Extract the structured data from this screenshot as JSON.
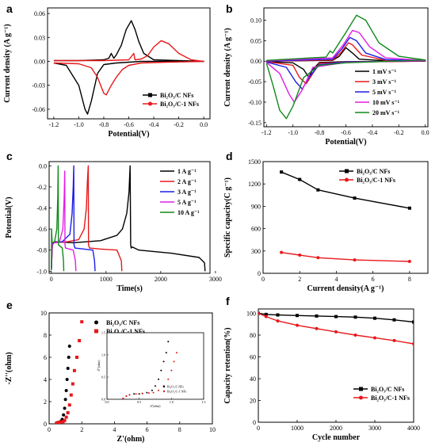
{
  "figure": {
    "palette": {
      "black": "#000000",
      "red": "#e8181b",
      "blue": "#1d1ee6",
      "magenta": "#e11ee6",
      "green": "#118a1c"
    }
  },
  "chart_data": [
    {
      "panel": "a",
      "type": "line",
      "xlabel": "Potential(V)",
      "ylabel": "Current density (A g⁻¹)",
      "xlim": [
        -1.25,
        0.05
      ],
      "ylim": [
        -0.072,
        0.067
      ],
      "xticks": [
        "-1.2",
        "-1.0",
        "-0.8",
        "-0.6",
        "-0.4",
        "-0.2",
        "0.0"
      ],
      "xtick_values": [
        -1.2,
        -1.0,
        -0.8,
        -0.6,
        -0.4,
        -0.2,
        0.0
      ],
      "yticks": [
        "-0.06",
        "-0.03",
        "0.00",
        "0.03",
        "0.06"
      ],
      "ytick_values": [
        -0.06,
        -0.03,
        0.0,
        0.03,
        0.06
      ],
      "legend": [
        "Bi₂O₃/C NFs",
        "Bi₂O₃/C-1 NFs"
      ],
      "legend_position": "bottom-right",
      "series": [
        {
          "name": "Bi₂O₃/C NFs",
          "color": "#000000",
          "marker": "square",
          "x": [
            -1.2,
            -1.1,
            -1.0,
            -0.95,
            -0.93,
            -0.9,
            -0.85,
            -0.8,
            -0.7,
            -0.6,
            -0.5,
            -0.3,
            0.0,
            -0.2,
            -0.4,
            -0.48,
            -0.52,
            -0.55,
            -0.58,
            -0.62,
            -0.66,
            -0.7,
            -0.72,
            -0.74,
            -0.76,
            -0.8,
            -1.0,
            -1.2
          ],
          "y": [
            -0.002,
            -0.005,
            -0.03,
            -0.06,
            -0.066,
            -0.05,
            -0.015,
            -0.004,
            -0.002,
            -0.001,
            0.0,
            0.0,
            0.0,
            0.001,
            0.002,
            0.01,
            0.025,
            0.04,
            0.051,
            0.04,
            0.02,
            0.008,
            0.004,
            0.01,
            0.004,
            0.002,
            0.001,
            0.001
          ]
        },
        {
          "name": "Bi₂O₃/C-1 NFs",
          "color": "#e8181b",
          "marker": "circle",
          "x": [
            -1.2,
            -1.0,
            -0.9,
            -0.85,
            -0.8,
            -0.78,
            -0.74,
            -0.7,
            -0.65,
            -0.6,
            -0.5,
            -0.3,
            0.0,
            -0.1,
            -0.2,
            -0.28,
            -0.34,
            -0.4,
            -0.45,
            -0.5,
            -0.55,
            -0.56,
            -0.6,
            -0.8,
            -1.0,
            -1.2
          ],
          "y": [
            -0.002,
            -0.003,
            -0.008,
            -0.02,
            -0.04,
            -0.042,
            -0.03,
            -0.02,
            -0.01,
            -0.005,
            -0.002,
            -0.001,
            0.0,
            0.002,
            0.01,
            0.022,
            0.026,
            0.018,
            0.007,
            0.003,
            0.002,
            0.01,
            0.002,
            0.001,
            0.001,
            0.001
          ]
        }
      ]
    },
    {
      "panel": "b",
      "type": "line",
      "xlabel": "Potential(V)",
      "ylabel": "Current density (A g⁻¹)",
      "xlim": [
        -1.22,
        0.02
      ],
      "ylim": [
        -0.16,
        0.13
      ],
      "xticks": [
        "-1.2",
        "-1.0",
        "-0.8",
        "-0.6",
        "-0.4",
        "-0.2",
        "0.0"
      ],
      "xtick_values": [
        -1.2,
        -1.0,
        -0.8,
        -0.6,
        -0.4,
        -0.2,
        0.0
      ],
      "yticks": [
        "-0.15",
        "-0.10",
        "-0.05",
        "0.00",
        "0.05",
        "0.10"
      ],
      "ytick_values": [
        -0.15,
        -0.1,
        -0.05,
        0.0,
        0.05,
        0.1
      ],
      "legend": [
        "1 mV s⁻¹",
        "3 mV s⁻¹",
        "5 mV s⁻¹",
        "10 mV s⁻¹",
        "20 mV s⁻¹"
      ],
      "legend_position": "bottom-right",
      "series": [
        {
          "name": "1 mV s⁻¹",
          "color": "#000000",
          "x": [
            -1.2,
            -1.0,
            -0.92,
            -0.88,
            -0.85,
            -0.8,
            -0.6,
            -0.0,
            -0.3,
            -0.5,
            -0.55,
            -0.6,
            -0.65,
            -0.7,
            -1.2
          ],
          "y": [
            -0.001,
            -0.004,
            -0.02,
            -0.04,
            -0.02,
            -0.003,
            -0.001,
            0.0,
            0.001,
            0.005,
            0.02,
            0.033,
            0.012,
            0.002,
            0.0
          ]
        },
        {
          "name": "3 mV s⁻¹",
          "color": "#e8181b",
          "x": [
            -1.2,
            -1.0,
            -0.95,
            -0.9,
            -0.85,
            -0.8,
            -0.6,
            0.0,
            -0.3,
            -0.48,
            -0.55,
            -0.58,
            -0.64,
            -0.7,
            -1.2
          ],
          "y": [
            -0.001,
            -0.01,
            -0.04,
            -0.055,
            -0.03,
            -0.005,
            -0.002,
            0.0,
            0.002,
            0.015,
            0.04,
            0.045,
            0.02,
            0.003,
            0.0
          ]
        },
        {
          "name": "5 mV s⁻¹",
          "color": "#1d1ee6",
          "x": [
            -1.2,
            -1.05,
            -0.98,
            -0.93,
            -0.88,
            -0.8,
            -0.6,
            0.0,
            -0.3,
            -0.45,
            -0.52,
            -0.57,
            -0.63,
            -0.7,
            -1.2
          ],
          "y": [
            -0.002,
            -0.015,
            -0.05,
            -0.068,
            -0.04,
            -0.008,
            -0.002,
            0.001,
            0.004,
            0.02,
            0.05,
            0.058,
            0.03,
            0.005,
            0.0
          ]
        },
        {
          "name": "10 mV s⁻¹",
          "color": "#e11ee6",
          "x": [
            -1.2,
            -1.1,
            -1.03,
            -0.99,
            -0.93,
            -0.85,
            -0.6,
            0.0,
            -0.3,
            -0.42,
            -0.5,
            -0.55,
            -0.62,
            -0.7,
            -1.2
          ],
          "y": [
            -0.003,
            -0.03,
            -0.08,
            -0.1,
            -0.07,
            -0.015,
            -0.003,
            0.002,
            0.008,
            0.035,
            0.07,
            0.075,
            0.04,
            0.008,
            0.001
          ]
        },
        {
          "name": "20 mV s⁻¹",
          "color": "#118a1c",
          "x": [
            -1.2,
            -1.15,
            -1.1,
            -1.05,
            -1.0,
            -0.92,
            -0.8,
            -0.6,
            0.0,
            -0.2,
            -0.35,
            -0.45,
            -0.52,
            -0.6,
            -0.7,
            -0.72,
            -0.75,
            -1.2
          ],
          "y": [
            -0.005,
            -0.06,
            -0.12,
            -0.14,
            -0.11,
            -0.04,
            -0.01,
            -0.004,
            0.003,
            0.012,
            0.045,
            0.1,
            0.112,
            0.07,
            0.02,
            0.025,
            0.01,
            0.002
          ]
        }
      ]
    },
    {
      "panel": "c",
      "type": "line",
      "xlabel": "Time(s)",
      "ylabel": "Potential(V)",
      "xlim": [
        -40,
        2900
      ],
      "ylim": [
        -1.02,
        0.04
      ],
      "xticks": [
        "0",
        "1000",
        "2000",
        "3000"
      ],
      "xtick_values": [
        0,
        1000,
        2000,
        3000
      ],
      "yticks": [
        "-1.0",
        "-0.8",
        "-0.6",
        "-0.4",
        "-0.2",
        "0.0"
      ],
      "ytick_values": [
        -1.0,
        -0.8,
        -0.6,
        -0.4,
        -0.2,
        0.0
      ],
      "legend": [
        "1 A g⁻¹",
        "2 A g⁻¹",
        "3 A g⁻¹",
        "5 A g⁻¹",
        "10 A g⁻¹"
      ],
      "legend_position": "right",
      "series": [
        {
          "name": "1 A g⁻¹",
          "color": "#000000",
          "x": [
            0,
            20,
            60,
            400,
            900,
            1200,
            1300,
            1380,
            1420,
            1440,
            1450,
            1460,
            1480,
            1600,
            2200,
            2700,
            2800,
            2810
          ],
          "y": [
            -0.99,
            -0.74,
            -0.72,
            -0.73,
            -0.71,
            -0.66,
            -0.6,
            -0.45,
            -0.25,
            0.0,
            -0.75,
            -0.78,
            -0.77,
            -0.8,
            -0.83,
            -0.87,
            -0.92,
            -1.0
          ]
        },
        {
          "name": "2 A g⁻¹",
          "color": "#e8181b",
          "x": [
            0,
            20,
            50,
            300,
            500,
            600,
            640,
            660,
            675,
            680,
            700,
            900,
            1200,
            1280,
            1290
          ],
          "y": [
            -0.99,
            -0.75,
            -0.73,
            -0.72,
            -0.7,
            -0.6,
            -0.4,
            -0.15,
            0.0,
            -0.75,
            -0.78,
            -0.79,
            -0.8,
            -0.9,
            -1.0
          ]
        },
        {
          "name": "3 A g⁻¹",
          "color": "#1d1ee6",
          "x": [
            0,
            15,
            40,
            200,
            340,
            380,
            400,
            410,
            415,
            430,
            600,
            760,
            790,
            800
          ],
          "y": [
            -0.99,
            -0.75,
            -0.73,
            -0.72,
            -0.65,
            -0.45,
            -0.2,
            0.0,
            -0.75,
            -0.78,
            -0.79,
            -0.8,
            -0.9,
            -1.0
          ]
        },
        {
          "name": "5 A g⁻¹",
          "color": "#e11ee6",
          "x": [
            0,
            10,
            30,
            150,
            210,
            235,
            245,
            250,
            260,
            400,
            440,
            450
          ],
          "y": [
            -0.99,
            -0.75,
            -0.73,
            -0.72,
            -0.6,
            -0.3,
            -0.05,
            -0.75,
            -0.78,
            -0.8,
            -0.9,
            -1.0
          ]
        },
        {
          "name": "10 A g⁻¹",
          "color": "#118a1c",
          "x": [
            0,
            5,
            15,
            60,
            100,
            118,
            125,
            130,
            200,
            222,
            228
          ],
          "y": [
            -0.99,
            -0.6,
            -0.73,
            -0.72,
            -0.6,
            -0.3,
            0.0,
            -0.75,
            -0.78,
            -0.9,
            -1.0
          ]
        }
      ]
    },
    {
      "panel": "d",
      "type": "line",
      "xlabel": "Current density(A g⁻¹)",
      "ylabel": "Specific capacity(C g⁻¹)",
      "xlim": [
        0,
        9
      ],
      "ylim": [
        0,
        1500
      ],
      "xticks": [
        "0",
        "2",
        "4",
        "6",
        "8"
      ],
      "xtick_values": [
        0,
        2,
        4,
        6,
        8
      ],
      "yticks": [
        "0",
        "300",
        "600",
        "900",
        "1200",
        "1500"
      ],
      "ytick_values": [
        0,
        300,
        600,
        900,
        1200,
        1500
      ],
      "legend": [
        "Bi₂O₃/C NFs",
        "Bi₂O₃/C-1 NFs"
      ],
      "legend_position": "top-right",
      "series": [
        {
          "name": "Bi₂O₃/C NFs",
          "color": "#000000",
          "marker": "square",
          "x": [
            1,
            2,
            3,
            5,
            8
          ],
          "y": [
            1360,
            1260,
            1120,
            1010,
            875
          ]
        },
        {
          "name": "Bi₂O₃/C-1 NFs",
          "color": "#e8181b",
          "marker": "circle",
          "x": [
            1,
            2,
            3,
            5,
            8
          ],
          "y": [
            280,
            245,
            210,
            180,
            160
          ]
        }
      ]
    },
    {
      "panel": "e",
      "type": "scatter",
      "xlabel": "Z'(ohm)",
      "ylabel": "-Z''(ohm)",
      "xlim": [
        0,
        10
      ],
      "ylim": [
        0,
        10
      ],
      "xticks": [
        "0",
        "2",
        "4",
        "6",
        "8",
        "10"
      ],
      "xtick_values": [
        0,
        2,
        4,
        6,
        8,
        10
      ],
      "yticks": [
        "0",
        "2",
        "4",
        "6",
        "8",
        "10"
      ],
      "ytick_values": [
        0,
        2,
        4,
        6,
        8,
        10
      ],
      "legend": [
        "Bi₂O₃/C NFs",
        "Bi₂O₃/C-1 NFs"
      ],
      "legend_position": "top",
      "series": [
        {
          "name": "Bi₂O₃/C NFs",
          "color": "#000000",
          "marker": "circle",
          "x": [
            0.45,
            0.5,
            0.55,
            0.6,
            0.65,
            0.72,
            0.8,
            0.88,
            0.95,
            1.0,
            1.05,
            1.1,
            1.15,
            1.2,
            1.25
          ],
          "y": [
            0.05,
            0.1,
            0.12,
            0.12,
            0.15,
            0.22,
            0.4,
            0.8,
            1.4,
            2.2,
            3.0,
            4.0,
            5.0,
            6.0,
            7.0
          ]
        },
        {
          "name": "Bi₂O₃/C-1 NFs",
          "color": "#e8181b",
          "marker": "square",
          "x": [
            0.45,
            0.5,
            0.58,
            0.65,
            0.75,
            0.85,
            0.95,
            1.05,
            1.15,
            1.25,
            1.35,
            1.45,
            1.55,
            1.7,
            1.85,
            2.0
          ],
          "y": [
            0.05,
            0.08,
            0.12,
            0.14,
            0.16,
            0.2,
            0.3,
            0.6,
            1.0,
            1.7,
            2.6,
            3.6,
            4.8,
            6.0,
            7.5,
            9.2
          ]
        }
      ],
      "inset": {
        "xlim": [
          0.0,
          1.5
        ],
        "ylim": [
          0.0,
          1.5
        ],
        "xticks": [
          "0.0",
          "0.5",
          "1.0",
          "1.5"
        ],
        "xtick_values": [
          0.0,
          0.5,
          1.0,
          1.5
        ],
        "yticks": [
          "0.0",
          "0.5",
          "1.0",
          "1.5"
        ],
        "ytick_values": [
          0.0,
          0.5,
          1.0,
          1.5
        ],
        "xlabel": "Z'(ohm)",
        "ylabel": "-Z''(ohm)",
        "legend": [
          "Bi₂O₃/C NFs",
          "Bi₂O₃/C-1 NFs"
        ],
        "series": [
          {
            "name": "Bi₂O₃/C NFs",
            "color": "#000000",
            "x": [
              0.25,
              0.3,
              0.35,
              0.42,
              0.5,
              0.55,
              0.62,
              0.7,
              0.75,
              0.8,
              0.84,
              0.88,
              0.92,
              0.95
            ],
            "y": [
              0.02,
              0.07,
              0.1,
              0.12,
              0.12,
              0.13,
              0.15,
              0.2,
              0.3,
              0.45,
              0.65,
              0.85,
              1.05,
              1.3
            ]
          },
          {
            "name": "Bi₂O₃/C-1 NFs",
            "color": "#e8181b",
            "x": [
              0.25,
              0.3,
              0.35,
              0.45,
              0.55,
              0.65,
              0.72,
              0.8,
              0.88,
              0.95,
              1.0,
              1.04,
              1.08
            ],
            "y": [
              0.02,
              0.07,
              0.1,
              0.12,
              0.13,
              0.14,
              0.15,
              0.2,
              0.3,
              0.45,
              0.65,
              0.85,
              1.05
            ]
          }
        ]
      }
    },
    {
      "panel": "f",
      "type": "line",
      "xlabel": "Cycle number",
      "ylabel": "Capacity retention(%)",
      "xlim": [
        0,
        4000
      ],
      "ylim": [
        0,
        104
      ],
      "xticks": [
        "0",
        "1000",
        "2000",
        "3000",
        "4000"
      ],
      "xtick_values": [
        0,
        1000,
        2000,
        3000,
        4000
      ],
      "yticks": [
        "0",
        "20",
        "40",
        "60",
        "80",
        "100"
      ],
      "ytick_values": [
        0,
        20,
        40,
        60,
        80,
        100
      ],
      "legend": [
        "Bi₂O₃/C NFs",
        "Bi₂O₃/C-1 NFs"
      ],
      "legend_position": "bottom-right",
      "series": [
        {
          "name": "Bi₂O₃/C NFs",
          "color": "#000000",
          "marker": "square",
          "x": [
            0,
            200,
            500,
            1000,
            1500,
            2000,
            2500,
            3000,
            3500,
            4000
          ],
          "y": [
            100,
            99,
            98.5,
            98,
            97.5,
            97,
            96.5,
            95.5,
            94,
            92
          ]
        },
        {
          "name": "Bi₂O₃/C-1 NFs",
          "color": "#e8181b",
          "marker": "circle",
          "x": [
            0,
            200,
            500,
            1000,
            1500,
            2000,
            2500,
            3000,
            3500,
            4000
          ],
          "y": [
            100,
            97,
            93,
            89,
            86,
            83,
            80,
            77.5,
            75,
            72
          ]
        }
      ]
    }
  ]
}
